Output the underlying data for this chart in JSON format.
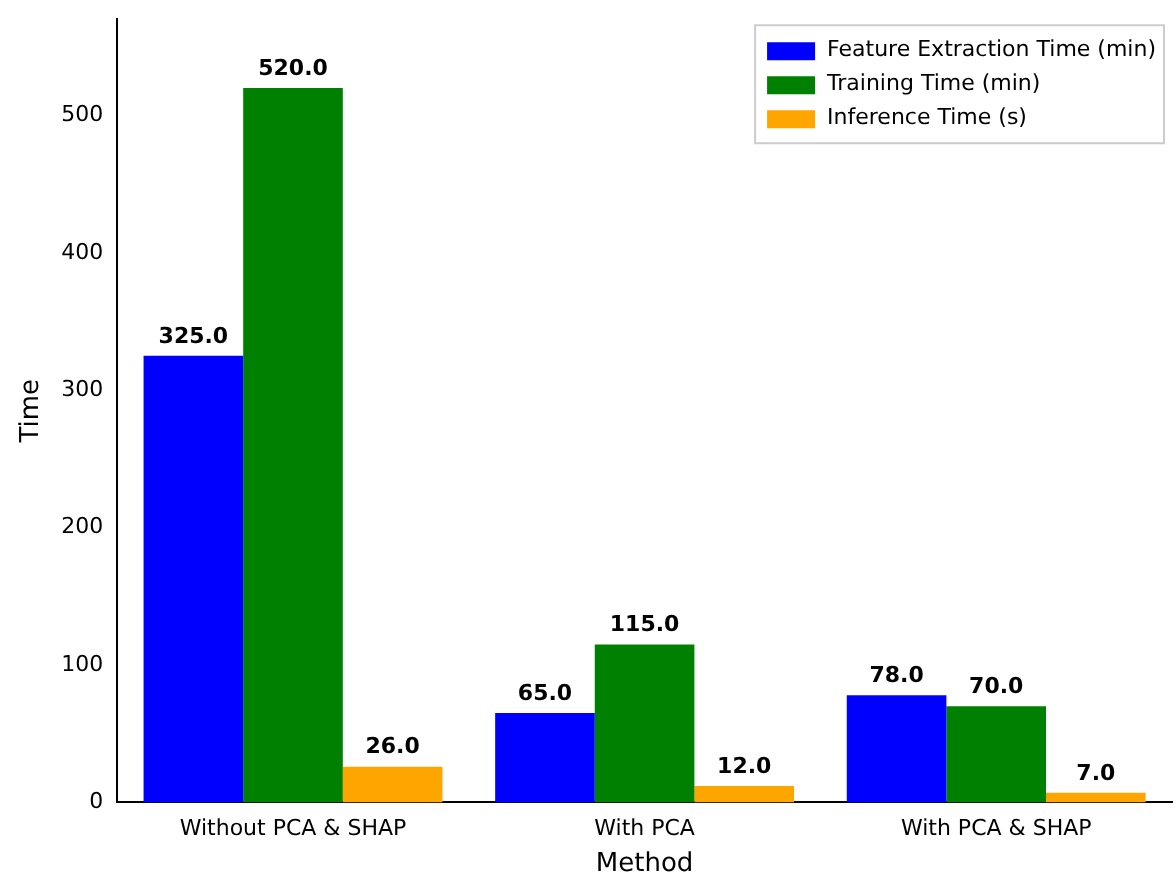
{
  "chart_data": {
    "type": "bar",
    "xlabel": "Method",
    "ylabel": "Time",
    "categories": [
      "Without PCA & SHAP",
      "With PCA",
      "With PCA & SHAP"
    ],
    "series": [
      {
        "name": "Feature Extraction Time (min)",
        "color": "#0000ff",
        "values": [
          325,
          65,
          78
        ],
        "value_labels": [
          "325.0",
          "65.0",
          "78.0"
        ]
      },
      {
        "name": "Training Time (min)",
        "color": "#008000",
        "values": [
          520,
          115,
          70
        ],
        "value_labels": [
          "520.0",
          "115.0",
          "70.0"
        ]
      },
      {
        "name": "Inference Time (s)",
        "color": "#ffa500",
        "values": [
          26,
          12,
          7
        ],
        "value_labels": [
          "26.0",
          "12.0",
          "7.0"
        ]
      }
    ],
    "ylim": [
      0,
      570
    ],
    "yticks": [
      0,
      100,
      200,
      300,
      400,
      500
    ],
    "grid": false,
    "legend": "top right"
  }
}
